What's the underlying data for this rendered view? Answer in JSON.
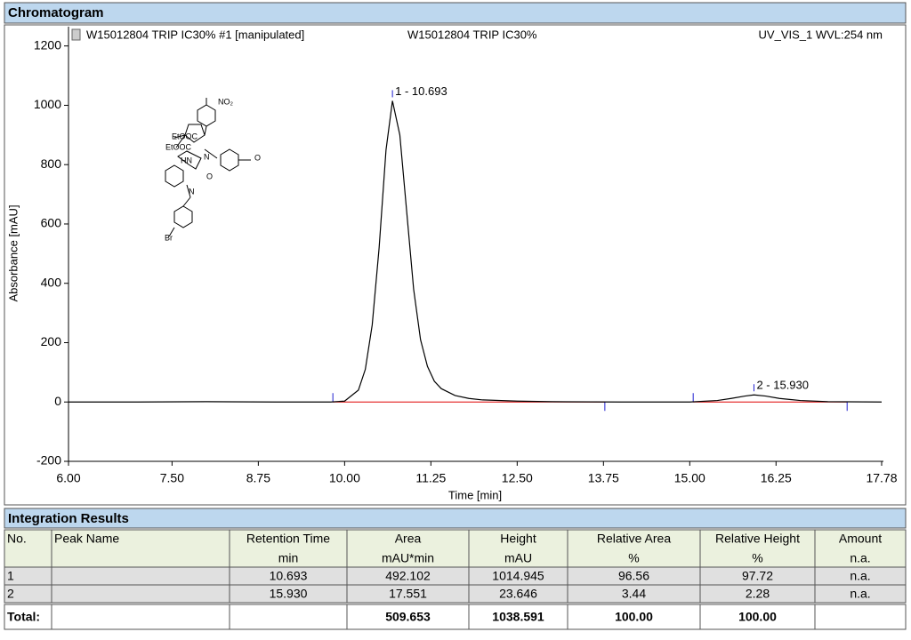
{
  "sections": {
    "chromatogram": "Chromatogram",
    "integration": "Integration Results"
  },
  "header": {
    "left": "W15012804 TRIP IC30% #1 [manipulated]",
    "center": "W15012804 TRIP IC30%",
    "right": "UV_VIS_1 WVL:254 nm"
  },
  "structure": {
    "labels": [
      "NO₂",
      "EtOOC",
      "EtOOC",
      "HN",
      "N",
      "O",
      "O",
      "N",
      "Br"
    ]
  },
  "chart_data": {
    "type": "line",
    "x_label": "Time [min]",
    "y_label": "Absorbance [mAU]",
    "color": "#000000",
    "x": [
      6.0,
      7.0,
      8.0,
      9.0,
      9.8,
      10.0,
      10.2,
      10.3,
      10.4,
      10.5,
      10.6,
      10.693,
      10.8,
      10.9,
      11.0,
      11.1,
      11.2,
      11.3,
      11.4,
      11.6,
      11.8,
      12.0,
      12.5,
      13.0,
      14.0,
      15.0,
      15.4,
      15.6,
      15.8,
      15.93,
      16.1,
      16.3,
      16.6,
      17.0,
      17.78
    ],
    "values": [
      0,
      0,
      1,
      0,
      0,
      3,
      40,
      110,
      260,
      520,
      850,
      1015,
      900,
      640,
      380,
      210,
      120,
      70,
      45,
      22,
      12,
      7,
      3,
      1,
      0,
      0,
      5,
      12,
      20,
      24,
      20,
      12,
      5,
      1,
      0
    ],
    "xlim": [
      6.0,
      17.78
    ],
    "ylim": [
      -200,
      1265
    ],
    "xticks": [
      {
        "value": 6.0,
        "label": "6.00"
      },
      {
        "value": 7.5,
        "label": "7.50"
      },
      {
        "value": 8.75,
        "label": "8.75"
      },
      {
        "value": 10.0,
        "label": "10.00"
      },
      {
        "value": 11.25,
        "label": "11.25"
      },
      {
        "value": 12.5,
        "label": "12.50"
      },
      {
        "value": 13.75,
        "label": "13.75"
      },
      {
        "value": 15.0,
        "label": "15.00"
      },
      {
        "value": 16.25,
        "label": "16.25"
      },
      {
        "value": 17.78,
        "label": "17.78"
      }
    ],
    "yticks": [
      -200,
      0,
      200,
      400,
      600,
      800,
      1000,
      1200
    ],
    "annotations": [
      {
        "text": "1 - 10.693",
        "x": 10.693,
        "y": 1015
      },
      {
        "text": "2 - 15.930",
        "x": 15.93,
        "y": 24
      }
    ],
    "baselines": [
      {
        "x": [
          9.83,
          13.77
        ],
        "y": [
          0,
          0
        ]
      },
      {
        "x": [
          15.05,
          17.28
        ],
        "y": [
          0,
          0
        ]
      }
    ],
    "baseline_color": "#e00000",
    "marker_color": "#2020d0"
  },
  "table": {
    "header": [
      "No.",
      "Peak Name",
      "Retention Time",
      "Area",
      "Height",
      "Relative Area",
      "Relative Height",
      "Amount"
    ],
    "units": [
      null,
      null,
      "min",
      "mAU*min",
      "mAU",
      "%",
      "%",
      "n.a."
    ],
    "rows": [
      [
        "1",
        null,
        "10.693",
        "492.102",
        "1014.945",
        "96.56",
        "97.72",
        "n.a."
      ],
      [
        "2",
        null,
        "15.930",
        "17.551",
        "23.646",
        "3.44",
        "2.28",
        "n.a."
      ]
    ],
    "total": [
      "Total:",
      null,
      null,
      "509.653",
      "1038.591",
      "100.00",
      "100.00",
      null
    ]
  }
}
